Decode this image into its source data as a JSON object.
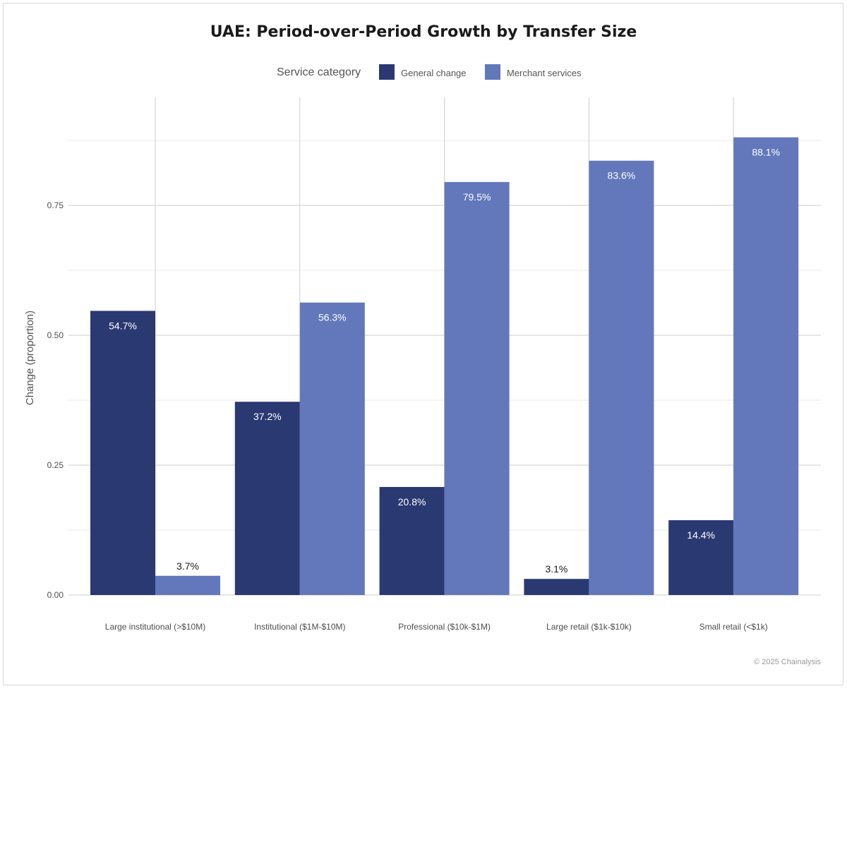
{
  "chart_data": {
    "type": "bar",
    "title": "UAE: Period-over-Period Growth by Transfer Size",
    "ylabel": "Change (proportion)",
    "xlabel": "",
    "ylim": [
      0,
      0.95
    ],
    "yticks": [
      "0.00",
      "0.25",
      "0.50",
      "0.75"
    ],
    "ytick_values": [
      0,
      0.25,
      0.5,
      0.75
    ],
    "grid": true,
    "legend_title": "Service category",
    "legend_position": "top",
    "categories": [
      "Large institutional (>$10M)",
      "Institutional ($1M-$10M)",
      "Professional ($10k-$1M)",
      "Large retail ($1k-$10k)",
      "Small retail (<$1k)"
    ],
    "series": [
      {
        "name": "General change",
        "color": "#2b3972",
        "values": [
          0.547,
          0.372,
          0.208,
          0.031,
          0.144
        ],
        "labels": [
          "54.7%",
          "37.2%",
          "20.8%",
          "3.1%",
          "14.4%"
        ]
      },
      {
        "name": "Merchant services",
        "color": "#6278bb",
        "values": [
          0.037,
          0.563,
          0.795,
          0.836,
          0.881
        ],
        "labels": [
          "3.7%",
          "56.3%",
          "79.5%",
          "83.6%",
          "88.1%"
        ]
      }
    ]
  },
  "caption": "© 2025 Chainalysis"
}
